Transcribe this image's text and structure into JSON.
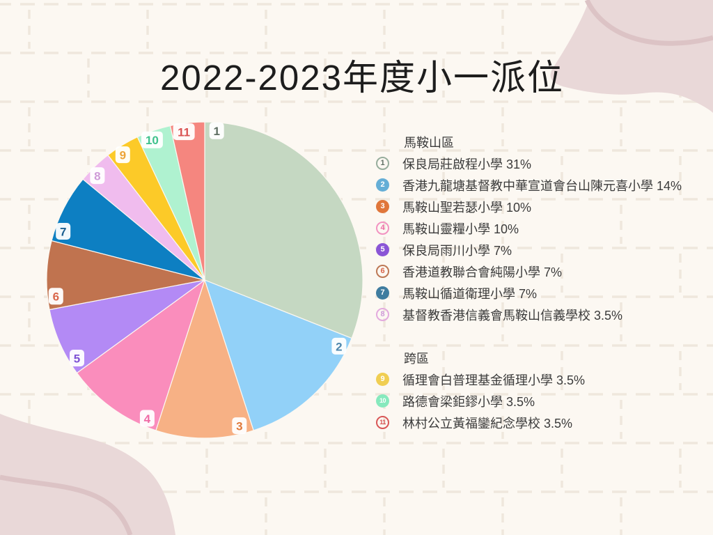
{
  "page": {
    "title": "2022-2023年度小一派位",
    "bg_color": "#fcf8f2",
    "grid_color": "#efe7dd",
    "blob_color": "#e9d8d8",
    "blob_line_color": "#dcc3c5",
    "title_color": "#1d1d1d",
    "legend_text_color": "#3b3b3b"
  },
  "chart_data": {
    "type": "pie",
    "title": "2022-2023年度小一派位",
    "unit": "percent",
    "start_angle_deg": 0,
    "direction": "clockwise",
    "legend_position": "right",
    "groups": [
      "馬鞍山區",
      "跨區"
    ],
    "slices": [
      {
        "num": "1",
        "group": "馬鞍山區",
        "name": "保良局莊啟程小學",
        "value": 31,
        "color": "#c5d8c2",
        "num_color": "#5e6e62",
        "badge": "outline",
        "badge_color": "#97ad9c"
      },
      {
        "num": "2",
        "group": "馬鞍山區",
        "name": "香港九龍塘基督教中華宣道會台山陳元喜小學",
        "value": 14,
        "color": "#92d1f8",
        "num_color": "#4e87ad",
        "badge": "filled",
        "badge_color": "#65aed6"
      },
      {
        "num": "3",
        "group": "馬鞍山區",
        "name": "馬鞍山聖若瑟小學",
        "value": 10,
        "color": "#f7b185",
        "num_color": "#e0793a",
        "badge": "filled",
        "badge_color": "#e0763a"
      },
      {
        "num": "4",
        "group": "馬鞍山區",
        "name": "馬鞍山靈糧小學",
        "value": 10,
        "color": "#fa8dbc",
        "num_color": "#ef6ba6",
        "badge": "outline",
        "badge_color": "#f293c1"
      },
      {
        "num": "5",
        "group": "馬鞍山區",
        "name": "保良局雨川小學",
        "value": 7,
        "color": "#b38af5",
        "num_color": "#7e52d4",
        "badge": "filled",
        "badge_color": "#8a55d6"
      },
      {
        "num": "6",
        "group": "馬鞍山區",
        "name": "香港道教聯合會純陽小學",
        "value": 7,
        "color": "#c0734f",
        "num_color": "#d9654a",
        "badge": "outline",
        "badge_color": "#bd7855"
      },
      {
        "num": "7",
        "group": "馬鞍山區",
        "name": "馬鞍山循道衛理小學",
        "value": 7,
        "color": "#0d7fc2",
        "num_color": "#1c5f90",
        "badge": "filled",
        "badge_color": "#3f7c9f"
      },
      {
        "num": "8",
        "group": "馬鞍山區",
        "name": "基督教香港信義會馬鞍山信義學校",
        "value": 3.5,
        "color": "#f0bcee",
        "num_color": "#cf9bd8",
        "badge": "outline",
        "badge_color": "#e3aade"
      },
      {
        "num": "9",
        "group": "跨區",
        "name": "循理會白普理基金循理小學",
        "value": 3.5,
        "color": "#fcca28",
        "num_color": "#eca438",
        "badge": "filled",
        "badge_color": "#f0ce52"
      },
      {
        "num": "10",
        "group": "跨區",
        "name": "路德會梁鉅鏐小學",
        "value": 3.5,
        "color": "#aff2d0",
        "num_color": "#3fc18c",
        "badge": "filled",
        "badge_color": "#86e9bd"
      },
      {
        "num": "11",
        "group": "跨區",
        "name": "林村公立黃福鑾紀念學校",
        "value": 3.5,
        "color": "#f5867f",
        "num_color": "#d95252",
        "badge": "outline",
        "badge_color": "#d95757"
      }
    ]
  },
  "legend": {
    "sections": [
      {
        "header": "馬鞍山區",
        "slice_nums": [
          "1",
          "2",
          "3",
          "4",
          "5",
          "6",
          "7",
          "8"
        ]
      },
      {
        "header": "跨區",
        "slice_nums": [
          "9",
          "10",
          "11"
        ]
      }
    ]
  }
}
